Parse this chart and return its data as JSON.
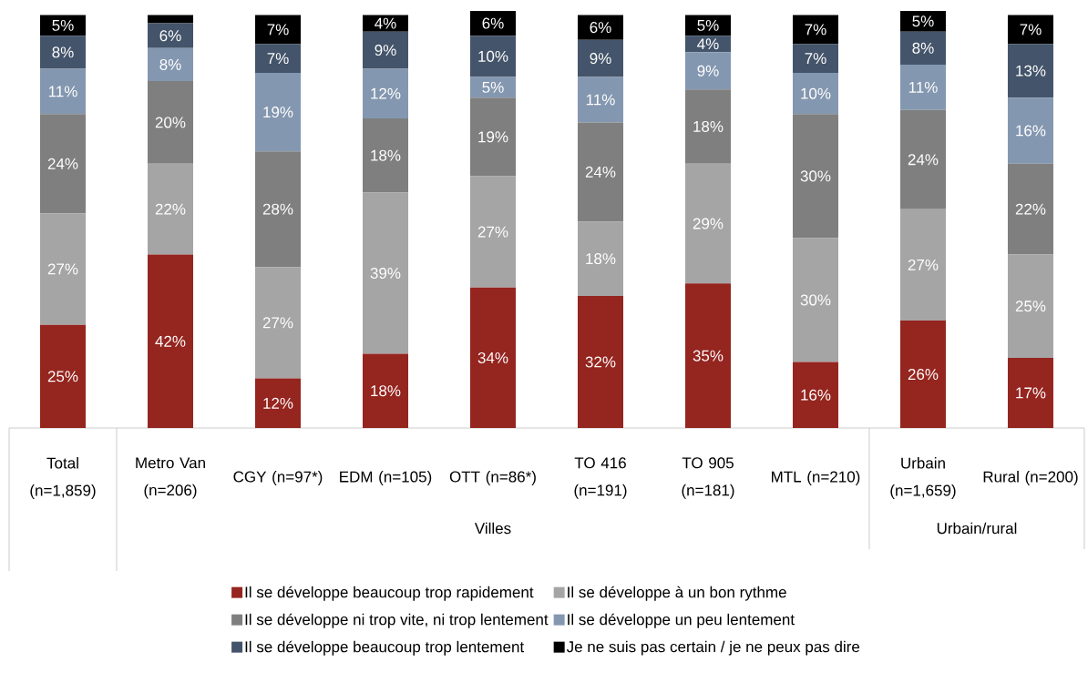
{
  "chart_data": {
    "type": "bar",
    "stacked": true,
    "legend": "bottom",
    "categories": [
      "Total (n=1,859)",
      "Metro Van (n=206)",
      "CGY (n=97*)",
      "EDM (n=105)",
      "OTT (n=86*)",
      "TO 416 (n=191)",
      "TO 905 (n=181)",
      "MTL (n=210)",
      "Urbain (n=1,659)",
      "Rural (n=200)"
    ],
    "annotations": [
      "Villes",
      "Urbain/rural"
    ],
    "series": [
      {
        "name": "Il se développe beaucoup trop rapidement",
        "color": "#95251f",
        "values": [
          25,
          42,
          12,
          18,
          34,
          32,
          35,
          16,
          26,
          17
        ],
        "value_labels": [
          "25%",
          "42%",
          "12%",
          "18%",
          "34%",
          "32%",
          "35%",
          "16%",
          "26%",
          "17%"
        ]
      },
      {
        "name": "Il se développe à un bon rythme",
        "color": "#a5a5a5",
        "values": [
          27,
          22,
          27,
          39,
          27,
          18,
          29,
          30,
          27,
          25
        ],
        "value_labels": [
          "27%",
          "22%",
          "27%",
          "39%",
          "27%",
          "18%",
          "29%",
          "30%",
          "27%",
          "25%"
        ]
      },
      {
        "name": "Il se développe ni trop vite, ni trop lentement",
        "color": "#7f7f7f",
        "values": [
          24,
          20,
          28,
          18,
          19,
          24,
          18,
          30,
          24,
          22
        ],
        "value_labels": [
          "24%",
          "20%",
          "28%",
          "18%",
          "19%",
          "24%",
          "18%",
          "30%",
          "24%",
          "22%"
        ]
      },
      {
        "name": "Il se développe un peu lentement",
        "color": "#8497b0",
        "values": [
          11,
          8,
          19,
          12,
          5,
          11,
          9,
          10,
          11,
          16
        ],
        "value_labels": [
          "11%",
          "8%",
          "19%",
          "12%",
          "5%",
          "11%",
          "9%",
          "10%",
          "11%",
          "16%"
        ]
      },
      {
        "name": "Il se développe beaucoup trop lentement",
        "color": "#44546a",
        "values": [
          8,
          6,
          7,
          9,
          10,
          9,
          4,
          7,
          8,
          13
        ],
        "value_labels": [
          "8%",
          "6%",
          "7%",
          "9%",
          "10%",
          "9%",
          "4%",
          "7%",
          "8%",
          "13%"
        ]
      },
      {
        "name": "Je ne suis pas certain / je ne peux pas dire",
        "color": "#000000",
        "values": [
          5,
          2,
          7,
          4,
          6,
          6,
          5,
          7,
          5,
          7
        ],
        "value_labels": [
          "5%",
          null,
          "7%",
          "4%",
          "6%",
          "6%",
          "5%",
          "7%",
          "5%",
          "7%"
        ]
      }
    ]
  }
}
